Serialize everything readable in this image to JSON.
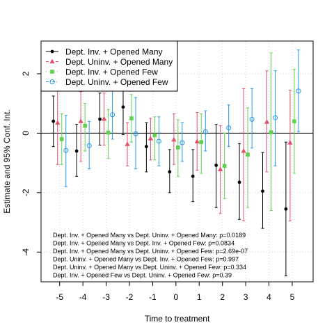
{
  "chart_data": {
    "type": "scatter",
    "ylabel": "Estimate and 95% Conf. Int.",
    "xlabel": "Time to treatment",
    "xlim": [
      -5.8,
      5.9
    ],
    "ylim": [
      -5.0,
      3.1
    ],
    "x_ticks": [
      -5,
      -4,
      -3,
      -2,
      -1,
      0,
      1,
      2,
      3,
      4,
      5
    ],
    "x_tick_labels": [
      "-5",
      "-4",
      "-3",
      "-2",
      "-1",
      "0",
      "1",
      "2",
      "3",
      "4",
      "5"
    ],
    "y_ticks": [
      -4,
      -2,
      0,
      2
    ],
    "y_tick_labels": [
      "-4",
      "-2",
      "0",
      "2"
    ],
    "grid": true,
    "reference_line_y": 0,
    "legend_position": "top-left",
    "series": [
      {
        "name": "Dept. Inv. + Opened Many",
        "color": "#000000",
        "marker": "dot",
        "line_style": "solid",
        "offset": -0.27,
        "x": [
          -5,
          -4,
          -3,
          -2,
          -1,
          0,
          1,
          2,
          3,
          4,
          5
        ],
        "y": [
          0.4,
          -0.6,
          0.47,
          0.88,
          -0.45,
          -1.3,
          -1.45,
          -1.08,
          -1.65,
          -1.95,
          -2.55
        ],
        "lower": [
          -0.45,
          -1.45,
          -0.4,
          -0.05,
          -1.3,
          -2.0,
          -2.3,
          -2.5,
          -2.9,
          -3.2,
          -4.8
        ],
        "upper": [
          1.25,
          0.3,
          1.35,
          1.8,
          0.35,
          -0.55,
          -0.55,
          0.3,
          -0.35,
          -0.65,
          -0.3
        ]
      },
      {
        "name": "Dept. Uninv. + Opened Many",
        "color": "#DF536B",
        "marker": "triangle",
        "line_style": "dashed",
        "offset": -0.09,
        "x": [
          -5,
          -4,
          -3,
          -2,
          -1,
          0,
          1,
          2,
          3,
          4,
          5
        ],
        "y": [
          0.35,
          0.4,
          0.48,
          -0.37,
          -0.18,
          -0.22,
          -0.28,
          -1.22,
          -0.6,
          0.38,
          -0.32
        ],
        "lower": [
          -1.05,
          -0.95,
          -0.4,
          -1.1,
          -0.9,
          -1.05,
          -1.25,
          -2.7,
          -2.95,
          -1.3,
          -2.95
        ],
        "upper": [
          1.6,
          1.4,
          1.35,
          0.35,
          0.5,
          0.65,
          0.7,
          0.25,
          1.5,
          2.1,
          1.45
        ]
      },
      {
        "name": "Dept. Inv. + Opened Few",
        "color": "#61D04F",
        "marker": "square",
        "line_style": "dotted",
        "offset": 0.09,
        "x": [
          -5,
          -4,
          -3,
          -2,
          -1,
          0,
          1,
          2,
          3,
          4,
          5
        ],
        "y": [
          -0.2,
          0.25,
          0.02,
          0.5,
          -0.07,
          -0.48,
          -0.3,
          -1.1,
          -0.72,
          0.03,
          0.4
        ],
        "lower": [
          -1.05,
          -0.6,
          -0.85,
          -0.3,
          -0.9,
          -1.45,
          -1.35,
          -2.2,
          -2.5,
          -2.6,
          -1.35
        ],
        "upper": [
          0.65,
          1.0,
          0.8,
          1.3,
          0.55,
          0.45,
          0.65,
          0.0,
          0.85,
          2.7,
          2.15
        ]
      },
      {
        "name": "Dept. Uninv. + Opened Few",
        "color": "#2297E6",
        "marker": "circle",
        "line_style": "dashdot",
        "offset": 0.27,
        "x": [
          -5,
          -4,
          -3,
          -2,
          -1,
          0,
          1,
          2,
          3,
          4,
          5
        ],
        "y": [
          -0.58,
          -0.42,
          0.62,
          -0.02,
          -0.27,
          -0.32,
          0.05,
          0.18,
          0.47,
          0.52,
          1.42
        ],
        "lower": [
          -1.8,
          -1.2,
          -0.2,
          -1.2,
          -1.1,
          -0.95,
          -0.6,
          -0.45,
          -0.5,
          -1.1,
          0.05
        ],
        "upper": [
          0.6,
          0.4,
          1.45,
          1.2,
          0.55,
          0.35,
          0.75,
          0.95,
          1.5,
          2.1,
          2.8
        ]
      }
    ],
    "annotations": [
      "Dept. Inv. + Opened Many vs Dept. Uninv. + Opened Many: p=0.0189",
      "Dept. Inv. + Opened Many vs Dept. Inv. + Opened Few: p=0.0834",
      "Dept. Inv. + Opened Many vs Dept. Uninv. + Opened Few: p=2.69e-07",
      "Dept. Uninv. + Opened Many vs Dept. Inv. + Opened Few: p=0.997",
      "Dept. Uninv. + Opened Many vs Dept. Uninv. + Opened Few: p=0.334",
      "Dept. Inv. + Opened Few vs Dept. Uninv. + Opened Few: p=0.39"
    ]
  }
}
